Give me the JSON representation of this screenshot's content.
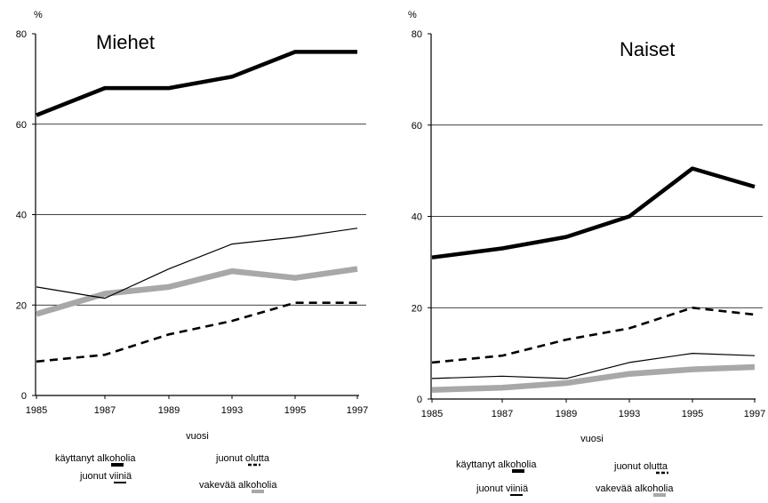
{
  "chart_data": [
    {
      "type": "line",
      "title": "Miehet",
      "unit_label": "%",
      "xlabel": "vuosi",
      "ylabel": "",
      "ylim": [
        0,
        80
      ],
      "yticks": [
        "0",
        "20",
        "40",
        "60",
        "80"
      ],
      "categories": [
        "1985",
        "1987",
        "1989",
        "1993",
        "1995",
        "1997"
      ],
      "grid": "horizontal at 20, 40, 60",
      "series": [
        {
          "name": "käyttanyt alkoholia",
          "style": "thick-solid",
          "color": "#000000",
          "values": [
            62,
            68,
            68,
            70.5,
            76,
            76
          ]
        },
        {
          "name": "juonut olutta",
          "style": "dashed",
          "color": "#000000",
          "values": [
            7.5,
            9,
            13.5,
            16.5,
            20.5,
            20.5
          ]
        },
        {
          "name": "juonut viiniä",
          "style": "thin-solid",
          "color": "#000000",
          "values": [
            24,
            21.5,
            28,
            33.5,
            35,
            37
          ]
        },
        {
          "name": "vakevää alkoholia",
          "style": "thick-gray",
          "color": "#a8a8a8",
          "values": [
            18,
            22.5,
            24,
            27.5,
            26,
            28
          ]
        }
      ]
    },
    {
      "type": "line",
      "title": "Naiset",
      "unit_label": "%",
      "xlabel": "vuosi",
      "ylabel": "",
      "ylim": [
        0,
        80
      ],
      "yticks": [
        "0",
        "20",
        "40",
        "60",
        "80"
      ],
      "categories": [
        "1985",
        "1987",
        "1989",
        "1993",
        "1995",
        "1997"
      ],
      "grid": "horizontal at 20, 40, 60",
      "series": [
        {
          "name": "käyttanyt alkoholia",
          "style": "thick-solid",
          "color": "#000000",
          "values": [
            31,
            33,
            35.5,
            40,
            50.5,
            46.5
          ]
        },
        {
          "name": "juonut olutta",
          "style": "dashed",
          "color": "#000000",
          "values": [
            8,
            9.5,
            13,
            15.5,
            20,
            18.5
          ]
        },
        {
          "name": "juonut viiniä",
          "style": "thin-solid",
          "color": "#000000",
          "values": [
            4.5,
            5,
            4.5,
            8,
            10,
            9.5
          ]
        },
        {
          "name": "vakevää alkoholia",
          "style": "thick-gray",
          "color": "#a8a8a8",
          "values": [
            2,
            2.5,
            3.5,
            5.5,
            6.5,
            7
          ]
        }
      ]
    }
  ],
  "legend": {
    "placement": "bottom",
    "items": [
      {
        "label": "käyttanyt alkoholia"
      },
      {
        "label": "juonut olutta"
      },
      {
        "label": "juonut viiniä"
      },
      {
        "label": "vakevää alkoholia"
      }
    ]
  }
}
